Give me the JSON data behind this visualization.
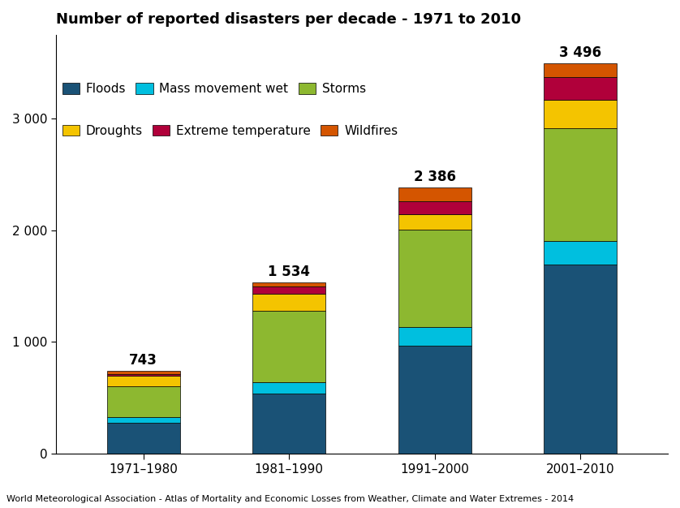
{
  "title": "Number of reported disasters per decade - 1971 to 2010",
  "categories": [
    "1971–1980",
    "1981–1990",
    "1991–2000",
    "2001–2010"
  ],
  "totals_labels": [
    "743",
    "1 534",
    "2 386",
    "3 496"
  ],
  "totals_values": [
    743,
    1534,
    2386,
    3496
  ],
  "series": {
    "Floods": {
      "values": [
        275,
        540,
        970,
        1690
      ],
      "color": "#1A5276"
    },
    "Mass movement wet": {
      "values": [
        50,
        100,
        165,
        215
      ],
      "color": "#00BFDF"
    },
    "Storms": {
      "values": [
        280,
        640,
        870,
        1010
      ],
      "color": "#8DB830"
    },
    "Droughts": {
      "values": [
        90,
        155,
        140,
        250
      ],
      "color": "#F4C400"
    },
    "Extreme temperature": {
      "values": [
        20,
        60,
        115,
        210
      ],
      "color": "#B0003A"
    },
    "Wildfires": {
      "values": [
        28,
        39,
        126,
        121
      ],
      "color": "#D45500"
    }
  },
  "legend_row1": [
    "Floods",
    "Mass movement wet",
    "Storms"
  ],
  "legend_row2": [
    "Droughts",
    "Extreme temperature",
    "Wildfires"
  ],
  "legend_colors": {
    "Floods": "#1A5276",
    "Mass movement wet": "#00BFDF",
    "Storms": "#8DB830",
    "Droughts": "#F4C400",
    "Extreme temperature": "#B0003A",
    "Wildfires": "#D45500"
  },
  "ylim": [
    0,
    3750
  ],
  "yticks": [
    0,
    1000,
    2000,
    3000
  ],
  "footnote": "World Meteorological Association - Atlas of Mortality and Economic Losses from Weather, Climate and Water Extremes - 2014",
  "background_color": "#FFFFFF",
  "bar_width": 0.5,
  "title_fontsize": 13,
  "tick_fontsize": 11,
  "legend_fontsize": 11,
  "total_label_fontsize": 12
}
